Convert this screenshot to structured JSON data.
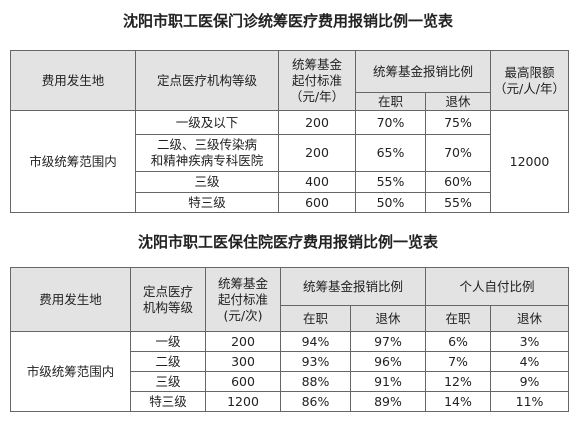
{
  "tables": [
    {
      "title": "沈阳市职工医保门诊统筹医疗费用报销比例一览表",
      "header": {
        "place": "费用发生地",
        "level": [
          "定点医疗机构等级"
        ],
        "threshold": [
          "统筹基金",
          "起付标准",
          "（元/年）"
        ],
        "reimbursement": "统筹基金报销比例",
        "sub": [
          "在职",
          "退休"
        ],
        "limit": [
          "最高限额",
          "（元/人/年）"
        ]
      },
      "region": "市级统筹范围内",
      "rows": [
        [
          [
            "一级及以下"
          ],
          "200",
          "70%",
          "75%"
        ],
        [
          [
            "二级、三级传染病",
            "和精神疾病专科医院"
          ],
          "200",
          "65%",
          "70%"
        ],
        [
          [
            "三级"
          ],
          "400",
          "55%",
          "60%"
        ],
        [
          [
            "特三级"
          ],
          "600",
          "50%",
          "55%"
        ]
      ],
      "limit_value": "12000"
    },
    {
      "title": "沈阳市职工医保住院医疗费用报销比例一览表",
      "header": {
        "place": "费用发生地",
        "level": [
          "定点医疗",
          "机构等级"
        ],
        "threshold": [
          "统筹基金",
          "起付标准",
          "(元/次)"
        ],
        "reimbursement": "统筹基金报销比例",
        "selfpay": "个人自付比例",
        "sub": [
          "在职",
          "退休",
          "在职",
          "退休"
        ]
      },
      "region": "市级统筹范围内",
      "rows": [
        [
          [
            "一级"
          ],
          "200",
          "94%",
          "97%",
          "6%",
          "3%"
        ],
        [
          [
            "二级"
          ],
          "300",
          "93%",
          "96%",
          "7%",
          "4%"
        ],
        [
          [
            "三级"
          ],
          "600",
          "88%",
          "91%",
          "12%",
          "9%"
        ],
        [
          [
            "特三级"
          ],
          "1200",
          "86%",
          "89%",
          "14%",
          "11%"
        ]
      ]
    }
  ]
}
